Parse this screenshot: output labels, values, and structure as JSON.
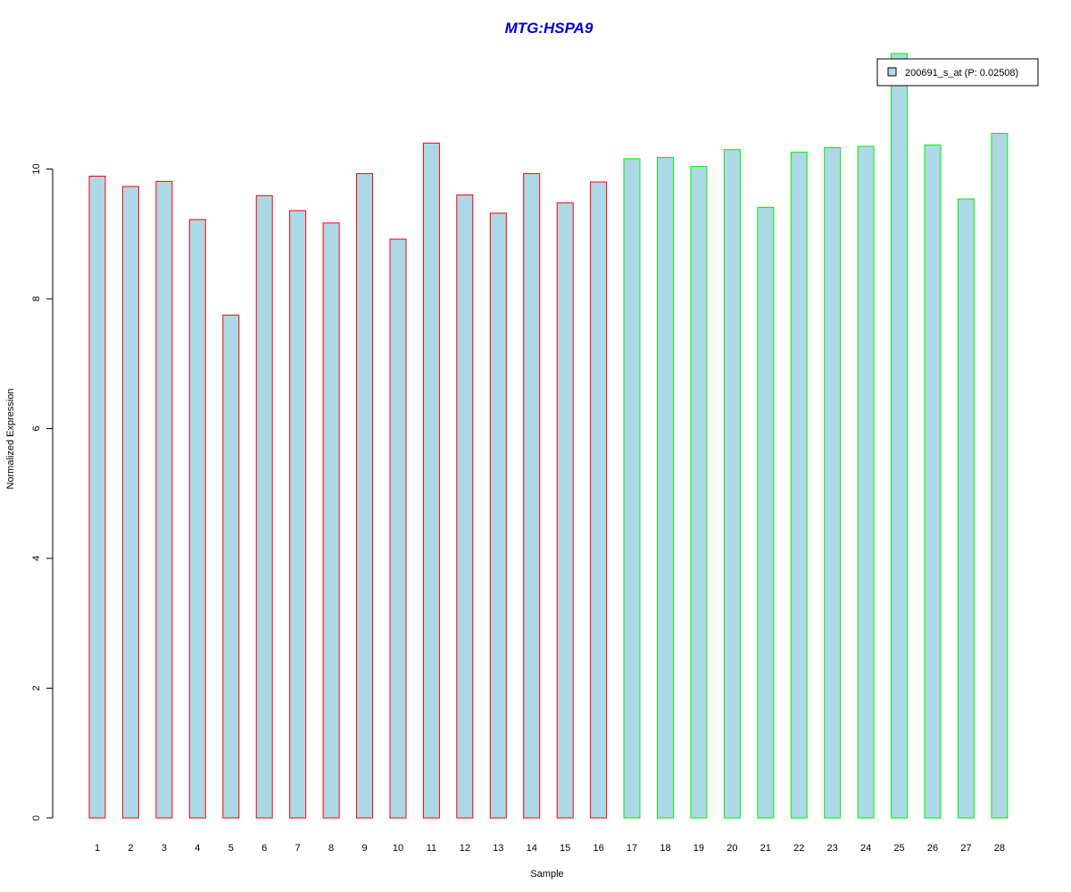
{
  "chart_data": {
    "type": "bar",
    "title": "MTG:HSPA9",
    "xlabel": "Sample",
    "ylabel": "Normalized Expression",
    "categories": [
      "1",
      "2",
      "3",
      "4",
      "5",
      "6",
      "7",
      "8",
      "9",
      "10",
      "11",
      "12",
      "13",
      "14",
      "15",
      "16",
      "17",
      "18",
      "19",
      "20",
      "21",
      "22",
      "23",
      "24",
      "25",
      "26",
      "27",
      "28"
    ],
    "values": [
      9.89,
      9.73,
      9.81,
      9.22,
      7.75,
      9.59,
      9.36,
      9.17,
      9.93,
      8.92,
      10.4,
      9.6,
      9.32,
      9.93,
      9.48,
      9.8,
      10.16,
      10.18,
      10.04,
      10.3,
      9.41,
      10.26,
      10.33,
      10.35,
      11.78,
      10.37,
      9.54,
      10.55
    ],
    "group_colors": [
      "#ff0000",
      "#ff0000",
      "#ff0000",
      "#ff0000",
      "#ff0000",
      "#ff0000",
      "#ff0000",
      "#ff0000",
      "#ff0000",
      "#ff0000",
      "#ff0000",
      "#ff0000",
      "#ff0000",
      "#ff0000",
      "#ff0000",
      "#ff0000",
      "#00ee00",
      "#00ee00",
      "#00ee00",
      "#00ee00",
      "#00ee00",
      "#00ee00",
      "#00ee00",
      "#00ee00",
      "#00ee00",
      "#00ee00",
      "#00ee00",
      "#00ee00"
    ],
    "bar_fill": "#add8e6",
    "title_color": "#0000cd",
    "ylim": [
      0,
      11.78
    ],
    "yticks": [
      "0",
      "2",
      "4",
      "6",
      "8",
      "10"
    ],
    "legend": {
      "label": "200691_s_at (P: 0.02508)",
      "placement": "top-right"
    },
    "grid": false
  }
}
